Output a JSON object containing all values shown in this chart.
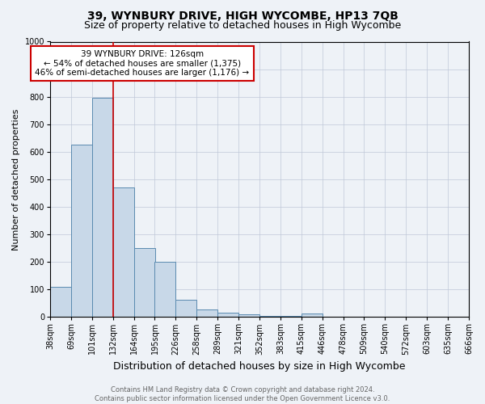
{
  "title": "39, WYNBURY DRIVE, HIGH WYCOMBE, HP13 7QB",
  "subtitle": "Size of property relative to detached houses in High Wycombe",
  "xlabel": "Distribution of detached houses by size in High Wycombe",
  "ylabel": "Number of detached properties",
  "footer": "Contains HM Land Registry data © Crown copyright and database right 2024.\nContains public sector information licensed under the Open Government Licence v3.0.",
  "bin_labels": [
    "38sqm",
    "69sqm",
    "101sqm",
    "132sqm",
    "164sqm",
    "195sqm",
    "226sqm",
    "258sqm",
    "289sqm",
    "321sqm",
    "352sqm",
    "383sqm",
    "415sqm",
    "446sqm",
    "478sqm",
    "509sqm",
    "540sqm",
    "572sqm",
    "603sqm",
    "635sqm",
    "666sqm"
  ],
  "bar_values": [
    110,
    625,
    795,
    470,
    250,
    200,
    62,
    27,
    15,
    10,
    5,
    5,
    12,
    0,
    0,
    0,
    0,
    0,
    0,
    0
  ],
  "bar_color": "#c8d8e8",
  "bar_edge_color": "#5a8ab0",
  "vline_x_index": 3,
  "vline_color": "#cc0000",
  "annotation_text": "39 WYNBURY DRIVE: 126sqm\n← 54% of detached houses are smaller (1,375)\n46% of semi-detached houses are larger (1,176) →",
  "annotation_box_facecolor": "#ffffff",
  "annotation_box_edgecolor": "#cc0000",
  "ylim": [
    0,
    1000
  ],
  "yticks": [
    0,
    100,
    200,
    300,
    400,
    500,
    600,
    700,
    800,
    900,
    1000
  ],
  "bg_color": "#eef2f7",
  "plot_bg_color": "#eef2f7",
  "title_fontsize": 10,
  "subtitle_fontsize": 9,
  "xlabel_fontsize": 9,
  "ylabel_fontsize": 8,
  "tick_fontsize": 7,
  "annotation_fontsize": 7.5,
  "footer_fontsize": 6,
  "grid_color": "#c0c8d8",
  "grid_linewidth": 0.5
}
